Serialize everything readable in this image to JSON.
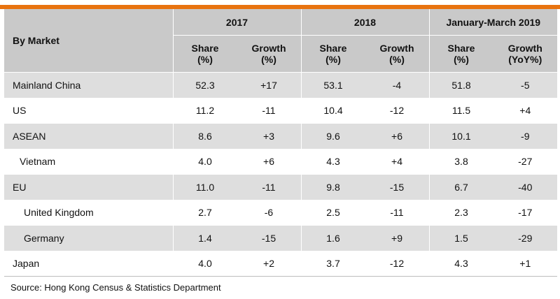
{
  "colors": {
    "accent_bar": "#e8730f",
    "header_bg": "#c9c9c9",
    "band_bg": "#dedede"
  },
  "table": {
    "market_header": "By Market",
    "periods": [
      "2017",
      "2018",
      "January-March 2019"
    ],
    "subheaders": [
      {
        "line1": "Share",
        "line2": "(%)"
      },
      {
        "line1": "Growth",
        "line2": "(%)"
      },
      {
        "line1": "Share",
        "line2": "(%)"
      },
      {
        "line1": "Growth",
        "line2": "(%)"
      },
      {
        "line1": "Share",
        "line2": "(%)"
      },
      {
        "line1": "Growth",
        "line2": "(YoY%)"
      }
    ],
    "rows": [
      {
        "market": "Mainland China",
        "values": [
          "52.3",
          "+17",
          "53.1",
          "-4",
          "51.8",
          "-5"
        ]
      },
      {
        "market": "US",
        "values": [
          "11.2",
          "-11",
          "10.4",
          "-12",
          "11.5",
          "+4"
        ]
      },
      {
        "market": "ASEAN",
        "values": [
          "8.6",
          "+3",
          "9.6",
          "+6",
          "10.1",
          "-9"
        ]
      },
      {
        "market": "Vietnam",
        "values": [
          "4.0",
          "+6",
          "4.3",
          "+4",
          "3.8",
          "-27"
        ]
      },
      {
        "market": "EU",
        "values": [
          "11.0",
          "-11",
          "9.8",
          "-15",
          "6.7",
          "-40"
        ]
      },
      {
        "market": "United Kingdom",
        "values": [
          "2.7",
          "-6",
          "2.5",
          "-11",
          "2.3",
          "-17"
        ]
      },
      {
        "market": "Germany",
        "values": [
          "1.4",
          "-15",
          "1.6",
          "+9",
          "1.5",
          "-29"
        ]
      },
      {
        "market": "Japan",
        "values": [
          "4.0",
          "+2",
          "3.7",
          "-12",
          "4.3",
          "+1"
        ]
      }
    ]
  },
  "source": "Source: Hong Kong Census & Statistics Department"
}
